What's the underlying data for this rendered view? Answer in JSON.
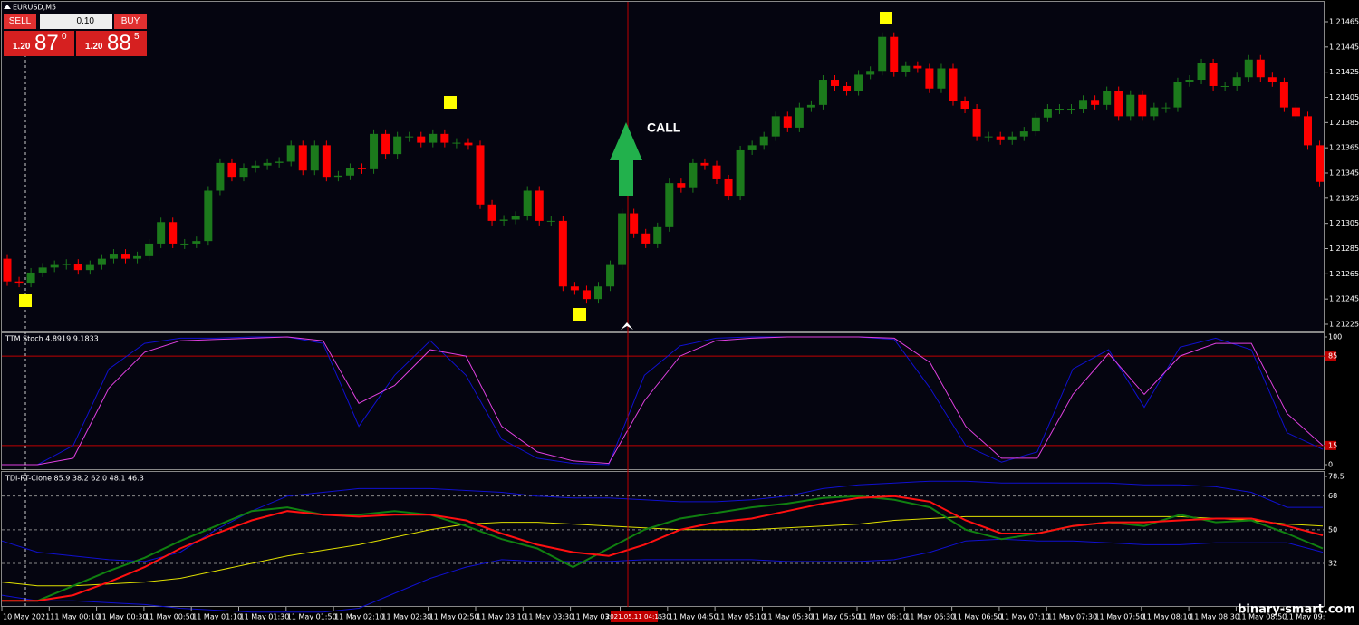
{
  "symbol": "EURUSD,M5",
  "trade_panel": {
    "sell": "SELL",
    "lot": "0.10",
    "buy": "BUY",
    "sell_big": "1.20",
    "sell_main": "87",
    "sell_sup": "0",
    "buy_big": "1.20",
    "buy_main": "88",
    "buy_sup": "5"
  },
  "main_chart": {
    "yticks": [
      1.21465,
      1.21445,
      1.21425,
      1.21405,
      1.21385,
      1.21365,
      1.21345,
      1.21325,
      1.21305,
      1.21285,
      1.21265,
      1.21245,
      1.21225
    ],
    "annotation": "CALL",
    "first_open": 1.21277,
    "closes": [
      1.21259,
      1.21258,
      1.21266,
      1.2127,
      1.21272,
      1.21273,
      1.21268,
      1.21272,
      1.21277,
      1.21281,
      1.21277,
      1.21279,
      1.21289,
      1.21306,
      1.21289,
      1.21289,
      1.21291,
      1.21331,
      1.21353,
      1.21342,
      1.21349,
      1.21351,
      1.21353,
      1.21354,
      1.21367,
      1.21347,
      1.21367,
      1.21342,
      1.21343,
      1.21349,
      1.21348,
      1.21376,
      1.2136,
      1.21374,
      1.21374,
      1.21369,
      1.21376,
      1.21369,
      1.21369,
      1.21367,
      1.2132,
      1.21307,
      1.21308,
      1.21311,
      1.21331,
      1.21307,
      1.21307,
      1.21255,
      1.21252,
      1.21245,
      1.21255,
      1.21272,
      1.21313,
      1.21297,
      1.21289,
      1.21302,
      1.21337,
      1.21333,
      1.21353,
      1.21351,
      1.2134,
      1.21327,
      1.21363,
      1.21367,
      1.21374,
      1.2139,
      1.21381,
      1.21397,
      1.21399,
      1.21419,
      1.21414,
      1.2141,
      1.21423,
      1.21426,
      1.21453,
      1.21425,
      1.2143,
      1.21428,
      1.21412,
      1.21428,
      1.21402,
      1.21396,
      1.21374,
      1.21374,
      1.21371,
      1.21374,
      1.21378,
      1.21389,
      1.21396,
      1.21396,
      1.21396,
      1.21403,
      1.21399,
      1.2141,
      1.2139,
      1.21407,
      1.2139,
      1.21397,
      1.21397,
      1.21417,
      1.21419,
      1.21432,
      1.21414,
      1.21414,
      1.21421,
      1.21435,
      1.21421,
      1.21417,
      1.21397,
      1.2139,
      1.21367,
      1.21338
    ]
  },
  "stoch": {
    "label": "TTM Stoch 4.8919 9.1833",
    "ticks": [
      100,
      85,
      15,
      0
    ],
    "k": [
      0,
      0,
      15,
      75,
      95,
      99,
      99,
      100,
      100,
      95,
      30,
      70,
      97,
      70,
      20,
      5,
      1,
      0,
      70,
      93,
      99,
      100,
      100,
      100,
      100,
      98,
      60,
      15,
      2,
      10,
      75,
      90,
      45,
      92,
      99,
      90,
      25,
      12
    ],
    "d": [
      0,
      0,
      5,
      60,
      88,
      97,
      98,
      99,
      100,
      97,
      48,
      62,
      90,
      85,
      30,
      10,
      3,
      1,
      50,
      85,
      97,
      99,
      100,
      100,
      100,
      99,
      80,
      30,
      5,
      5,
      55,
      87,
      55,
      85,
      95,
      95,
      40,
      15
    ]
  },
  "tdi": {
    "label": "TDI-RT-Clone 85.9 38.2 62.0 48.1 46.3",
    "ticks": [
      78.5,
      68,
      50,
      32
    ],
    "upper": [
      44,
      38,
      36,
      34,
      33,
      38,
      50,
      60,
      68,
      70,
      72,
      72,
      72,
      71,
      70,
      68,
      67,
      67,
      66,
      65,
      65,
      66,
      68,
      72,
      74,
      75,
      76,
      76,
      75,
      75,
      75,
      75,
      74,
      74,
      73,
      70,
      62,
      62
    ],
    "lower": [
      15,
      12,
      12,
      11,
      10,
      8,
      7,
      6,
      6,
      6,
      8,
      16,
      24,
      30,
      34,
      33,
      33,
      33,
      34,
      34,
      34,
      34,
      33,
      33,
      33,
      34,
      38,
      44,
      45,
      44,
      44,
      43,
      42,
      42,
      43,
      43,
      43,
      38
    ],
    "yellow": [
      22,
      20,
      20,
      21,
      22,
      24,
      28,
      32,
      36,
      39,
      42,
      46,
      50,
      53,
      54,
      54,
      53,
      52,
      51,
      50,
      50,
      50,
      51,
      52,
      53,
      55,
      56,
      57,
      57,
      57,
      57,
      57,
      57,
      57,
      56,
      55,
      53,
      52
    ],
    "red": [
      12,
      12,
      15,
      22,
      30,
      40,
      48,
      55,
      60,
      58,
      57,
      58,
      58,
      55,
      48,
      42,
      38,
      36,
      42,
      50,
      54,
      56,
      60,
      64,
      67,
      68,
      65,
      55,
      48,
      48,
      52,
      54,
      54,
      55,
      56,
      56,
      52,
      47
    ],
    "green": [
      12,
      12,
      20,
      28,
      35,
      44,
      52,
      60,
      62,
      58,
      58,
      60,
      58,
      52,
      45,
      40,
      30,
      40,
      50,
      56,
      59,
      62,
      64,
      67,
      68,
      66,
      62,
      50,
      45,
      48,
      52,
      54,
      52,
      58,
      54,
      55,
      48,
      40
    ]
  },
  "time_axis": [
    "10 May 2021",
    "11 May 00:10",
    "11 May 00:30",
    "11 May 00:50",
    "11 May 01:10",
    "11 May 01:30",
    "11 May 01:50",
    "11 May 02:10",
    "11 May 02:30",
    "11 May 02:50",
    "11 May 03:10",
    "11 May 03:30",
    "11 May 03:50",
    "11 May 04:30",
    "11 May 04:50",
    "11 May 05:10",
    "11 May 05:30",
    "11 May 05:50",
    "11 May 06:10",
    "11 May 06:30",
    "11 May 06:50",
    "11 May 07:10",
    "11 May 07:30",
    "11 May 07:50",
    "11 May 08:10",
    "11 May 08:30",
    "11 May 08:50",
    "11 May 09:"
  ],
  "cursor_time": "2021.05.11 04:15",
  "watermark": "binary-smart.com"
}
